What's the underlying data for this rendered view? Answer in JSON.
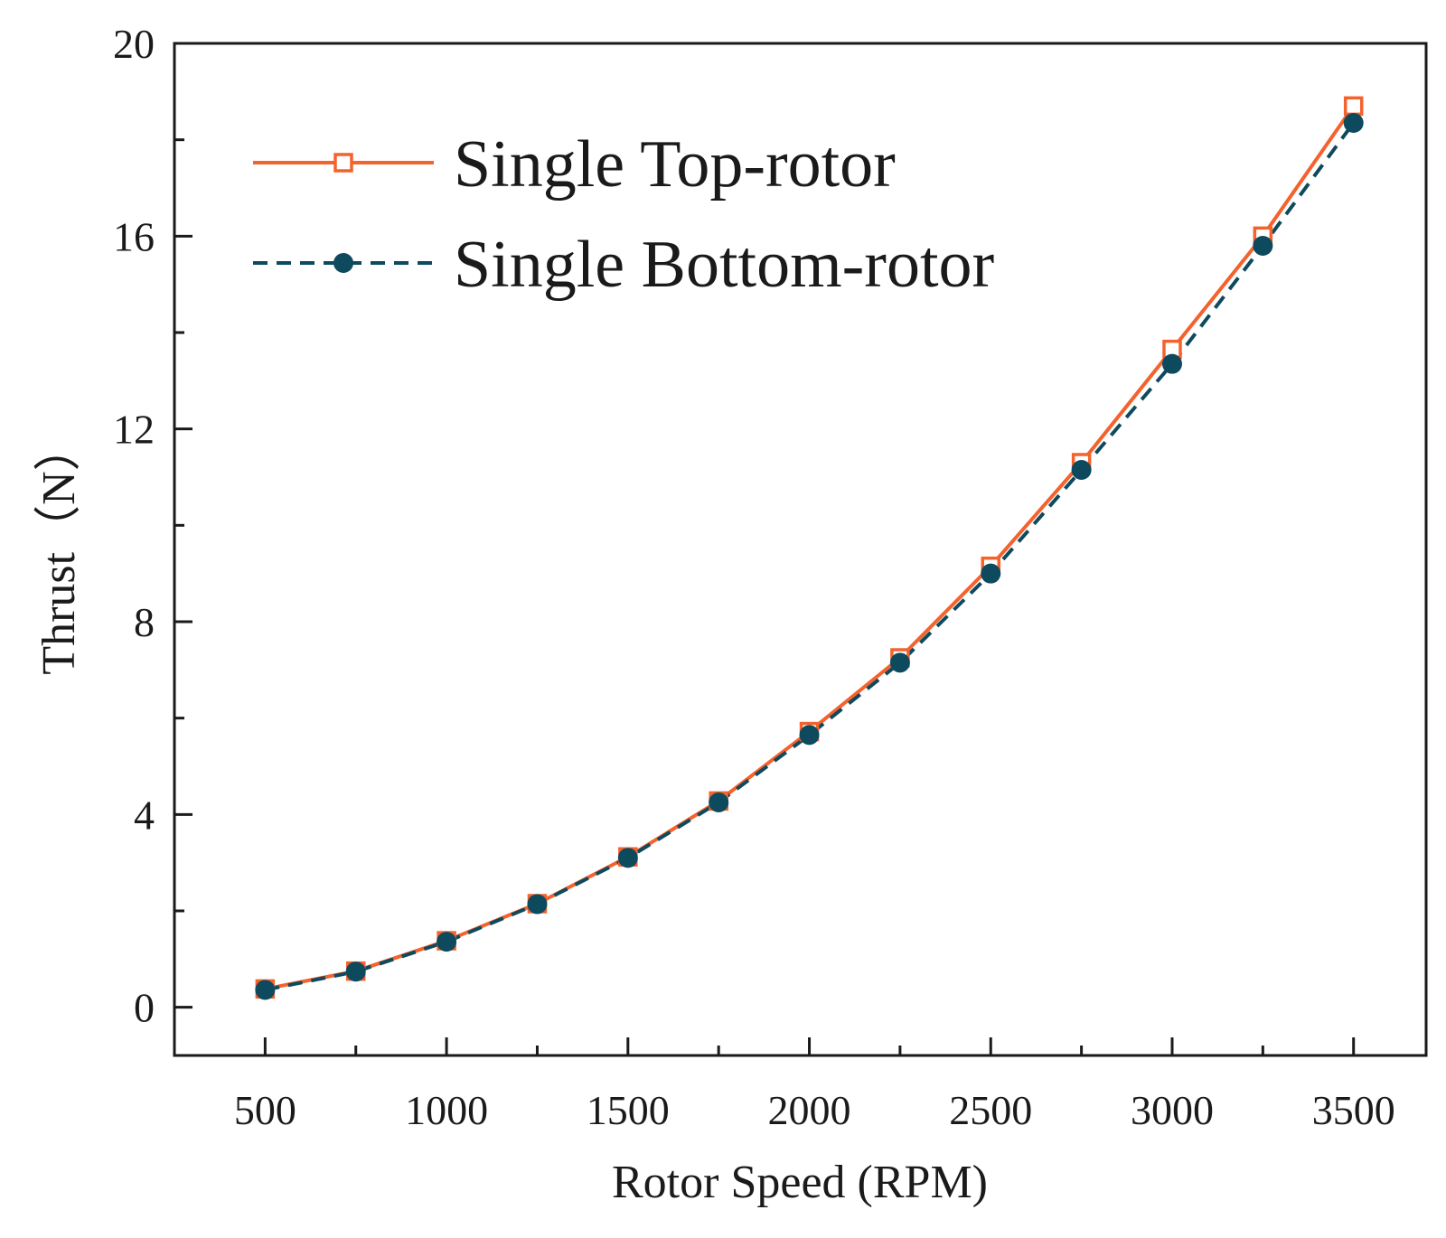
{
  "chart_data": {
    "type": "line",
    "title": "",
    "xlabel": "Rotor Speed (RPM)",
    "ylabel": "Thrust（N）",
    "xlim": [
      250,
      3700
    ],
    "ylim": [
      -1,
      20
    ],
    "xticks": [
      500,
      1000,
      1500,
      2000,
      2500,
      3000,
      3500
    ],
    "xtick_labels": [
      "500",
      "1000",
      "1500",
      "2000",
      "2500",
      "3000",
      "3500"
    ],
    "yticks": [
      0,
      4,
      8,
      12,
      16,
      20
    ],
    "ytick_labels": [
      "0",
      "4",
      "8",
      "12",
      "16",
      "20"
    ],
    "x": [
      500,
      750,
      1000,
      1250,
      1500,
      1750,
      2000,
      2250,
      2500,
      2750,
      3000,
      3250,
      3500
    ],
    "series": [
      {
        "name": "Single Top-rotor",
        "values": [
          0.38,
          0.75,
          1.38,
          2.15,
          3.12,
          4.28,
          5.72,
          7.25,
          9.15,
          11.3,
          13.65,
          16.0,
          18.7
        ],
        "color": "#f4622d",
        "line": "solid",
        "marker": "open-square"
      },
      {
        "name": "Single Bottom-rotor",
        "values": [
          0.36,
          0.74,
          1.36,
          2.14,
          3.1,
          4.25,
          5.65,
          7.15,
          9.0,
          11.15,
          13.35,
          15.8,
          18.35
        ],
        "color": "#0e4a5e",
        "line": "dashed",
        "marker": "filled-circle"
      }
    ],
    "legend_position": "top-left",
    "grid": false
  }
}
